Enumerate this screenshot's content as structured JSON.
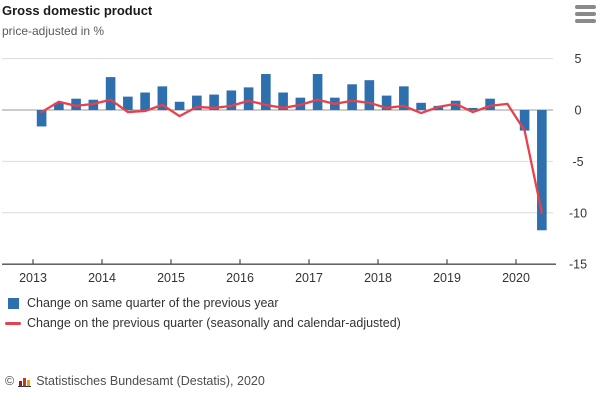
{
  "header": {
    "title": "Gross domestic product",
    "subtitle": "price-adjusted in %"
  },
  "legend": {
    "bars_label": "Change on same quarter of the previous year",
    "line_label": "Change on the previous quarter (seasonally and calendar-adjusted)"
  },
  "footer": {
    "copyright": "©",
    "source": "Statistisches Bundesamt (Destatis), 2020"
  },
  "colors": {
    "bar": "#2e6fae",
    "line": "#e8414b",
    "grid": "#dcdcdc",
    "zero_line": "#999999",
    "axis": "#4d4d4d",
    "text": "#333333"
  },
  "chart_data": {
    "type": "bar",
    "title": "Gross domestic product, price-adjusted in %",
    "categories": [
      "2013 Q1",
      "2013 Q2",
      "2013 Q3",
      "2013 Q4",
      "2014 Q1",
      "2014 Q2",
      "2014 Q3",
      "2014 Q4",
      "2015 Q1",
      "2015 Q2",
      "2015 Q3",
      "2015 Q4",
      "2016 Q1",
      "2016 Q2",
      "2016 Q3",
      "2016 Q4",
      "2017 Q1",
      "2017 Q2",
      "2017 Q3",
      "2017 Q4",
      "2018 Q1",
      "2018 Q2",
      "2018 Q3",
      "2018 Q4",
      "2019 Q1",
      "2019 Q2",
      "2019 Q3",
      "2019 Q4",
      "2020 Q1",
      "2020 Q2"
    ],
    "series": [
      {
        "name": "Change on same quarter of the previous year",
        "type": "bar",
        "values": [
          -1.6,
          0.7,
          1.1,
          1.0,
          3.2,
          1.3,
          1.7,
          2.3,
          0.8,
          1.4,
          1.5,
          1.9,
          2.2,
          3.5,
          1.7,
          1.2,
          3.5,
          1.2,
          2.5,
          2.9,
          1.4,
          2.3,
          0.7,
          0.4,
          0.9,
          0.2,
          1.1,
          0.0,
          -2.0,
          -11.7
        ]
      },
      {
        "name": "Change on the previous quarter (seasonally and calendar-adjusted)",
        "type": "line",
        "values": [
          -0.2,
          0.8,
          0.4,
          0.6,
          1.0,
          -0.2,
          -0.1,
          0.5,
          -0.6,
          0.3,
          0.2,
          0.4,
          0.9,
          0.5,
          0.2,
          0.5,
          1.0,
          0.6,
          0.9,
          0.7,
          0.2,
          0.4,
          -0.3,
          0.3,
          0.6,
          -0.2,
          0.4,
          0.6,
          -2.0,
          -10.0
        ]
      }
    ],
    "x_year_labels": [
      "2013",
      "2014",
      "2015",
      "2016",
      "2017",
      "2018",
      "2019",
      "2020"
    ],
    "y_ticks": [
      5,
      0,
      -5,
      -10,
      -15
    ],
    "ylim": [
      -15,
      5
    ],
    "grid": "horizontal",
    "legend_position": "bottom"
  }
}
